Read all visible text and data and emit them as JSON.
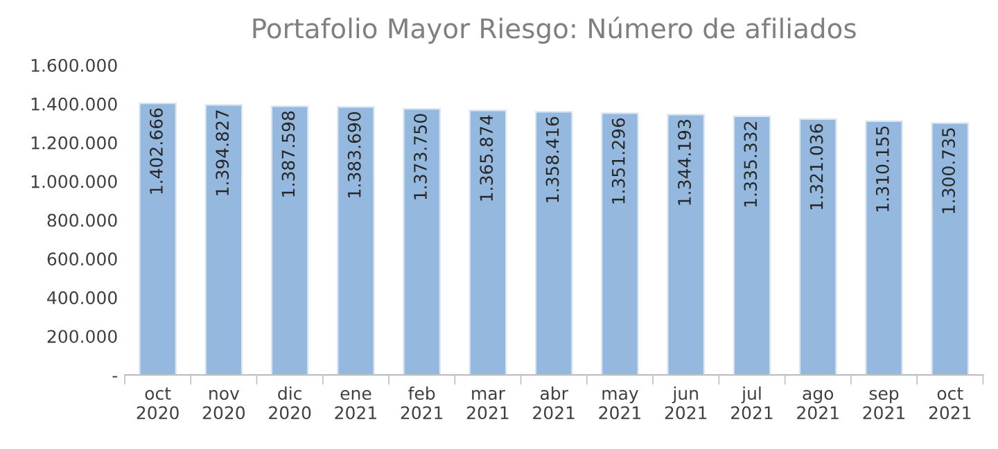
{
  "chart_data": {
    "type": "bar",
    "title": "Portafolio Mayor Riesgo: Número de afiliados",
    "categories": [
      "oct\n2020",
      "nov\n2020",
      "dic\n2020",
      "ene\n2021",
      "feb\n2021",
      "mar\n2021",
      "abr\n2021",
      "may\n2021",
      "jun\n2021",
      "jul\n2021",
      "ago\n2021",
      "sep\n2021",
      "oct\n2021"
    ],
    "values": [
      1402666,
      1394827,
      1387598,
      1383690,
      1373750,
      1365874,
      1358416,
      1351296,
      1344193,
      1335332,
      1321036,
      1310155,
      1300735
    ],
    "value_labels": [
      "1.402.666",
      "1.394.827",
      "1.387.598",
      "1.383.690",
      "1.373.750",
      "1.365.874",
      "1.358.416",
      "1.351.296",
      "1.344.193",
      "1.335.332",
      "1.321.036",
      "1.310.155",
      "1.300.735"
    ],
    "color": "#95b9de",
    "ylim": [
      0,
      1600000
    ],
    "yticks": [
      {
        "value": 0,
        "label": "-"
      },
      {
        "value": 200000,
        "label": "200.000"
      },
      {
        "value": 400000,
        "label": "400.000"
      },
      {
        "value": 600000,
        "label": "600.000"
      },
      {
        "value": 800000,
        "label": "800.000"
      },
      {
        "value": 1000000,
        "label": "1.000.000"
      },
      {
        "value": 1200000,
        "label": "1.200.000"
      },
      {
        "value": 1400000,
        "label": "1.400.000"
      },
      {
        "value": 1600000,
        "label": "1.600.000"
      }
    ],
    "grid": false,
    "legend": false
  }
}
